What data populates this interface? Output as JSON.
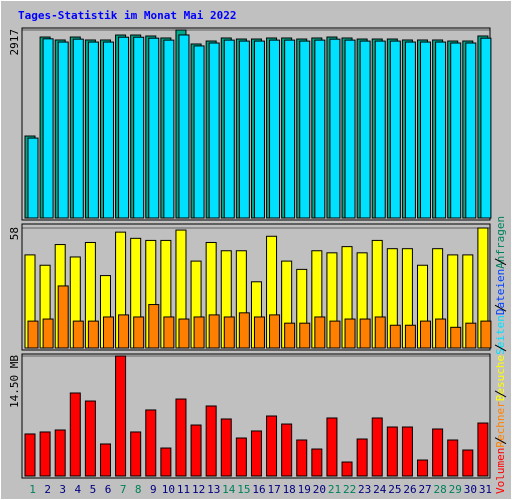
{
  "title": "Tages-Statistik im Monat Mai 2022",
  "legend": [
    {
      "name": "Volumen",
      "color": "#ff0000"
    },
    {
      "name": "Rechner",
      "color": "#ff8000"
    },
    {
      "name": "Besuche",
      "color": "#ffff00"
    },
    {
      "name": "Seiten",
      "color": "#00e0ff"
    },
    {
      "name": "Dateien",
      "color": "#0040ff"
    },
    {
      "name": "Anfragen",
      "color": "#00805c"
    }
  ],
  "chart_data": [
    {
      "type": "bar",
      "ylim": [
        0,
        2917
      ],
      "yticks": [
        2917
      ],
      "series": [
        {
          "color": "#00a88c",
          "values": [
            1272,
            2808,
            2762,
            2808,
            2762,
            2762,
            2839,
            2839,
            2824,
            2793,
            2917,
            2700,
            2746,
            2793,
            2777,
            2777,
            2793,
            2793,
            2777,
            2793,
            2808,
            2793,
            2777,
            2777,
            2777,
            2762,
            2762,
            2762,
            2746,
            2746,
            2824
          ]
        },
        {
          "color": "#00e0ff",
          "values": [
            1240,
            2780,
            2730,
            2775,
            2730,
            2730,
            2805,
            2805,
            2790,
            2760,
            2840,
            2670,
            2715,
            2760,
            2745,
            2745,
            2760,
            2760,
            2745,
            2760,
            2775,
            2760,
            2745,
            2745,
            2745,
            2730,
            2730,
            2730,
            2715,
            2715,
            2790
          ]
        }
      ]
    },
    {
      "type": "bar",
      "ylim": [
        0,
        58
      ],
      "yticks": [
        58
      ],
      "series": [
        {
          "color": "#ffff00",
          "values": [
            45,
            40,
            50,
            44,
            51,
            35,
            56,
            53,
            52,
            52,
            57,
            42,
            51,
            47,
            47,
            32,
            54,
            42,
            38,
            47,
            46,
            49,
            46,
            52,
            48,
            48,
            40,
            48,
            45,
            45,
            58
          ]
        },
        {
          "color": "#ff8000",
          "values": [
            13,
            14,
            30,
            13,
            13,
            15,
            16,
            15,
            21,
            15,
            14,
            15,
            16,
            15,
            17,
            15,
            16,
            12,
            12,
            15,
            13,
            14,
            14,
            15,
            11,
            11,
            13,
            14,
            10,
            12,
            13
          ]
        }
      ]
    },
    {
      "type": "bar",
      "ylim": [
        0,
        14.5
      ],
      "yticks": [
        {
          "value": 14.5,
          "label": "14.50 MB"
        }
      ],
      "categories": [
        "1",
        "2",
        "3",
        "4",
        "5",
        "6",
        "7",
        "8",
        "9",
        "10",
        "11",
        "12",
        "13",
        "14",
        "15",
        "16",
        "17",
        "18",
        "19",
        "20",
        "21",
        "22",
        "23",
        "24",
        "25",
        "26",
        "27",
        "28",
        "29",
        "30",
        "31"
      ],
      "category_colors": [
        "#00805c",
        "#000080",
        "#000080",
        "#000080",
        "#000080",
        "#000080",
        "#00805c",
        "#00805c",
        "#000080",
        "#000080",
        "#000080",
        "#000080",
        "#000080",
        "#00805c",
        "#00805c",
        "#000080",
        "#000080",
        "#000080",
        "#000080",
        "#000080",
        "#00805c",
        "#00805c",
        "#000080",
        "#000080",
        "#000080",
        "#000080",
        "#000080",
        "#00805c",
        "#00805c",
        "#000080",
        "#000080"
      ],
      "series": [
        {
          "color": "#ff0000",
          "values": [
            5.08,
            5.32,
            5.56,
            10.03,
            9.06,
            3.87,
            14.5,
            5.32,
            7.98,
            3.38,
            9.3,
            6.16,
            8.46,
            6.89,
            4.59,
            5.44,
            7.25,
            6.28,
            4.35,
            3.26,
            7.01,
            1.69,
            4.47,
            7.01,
            5.92,
            5.92,
            1.93,
            5.68,
            4.35,
            3.14,
            6.4
          ]
        }
      ]
    }
  ]
}
